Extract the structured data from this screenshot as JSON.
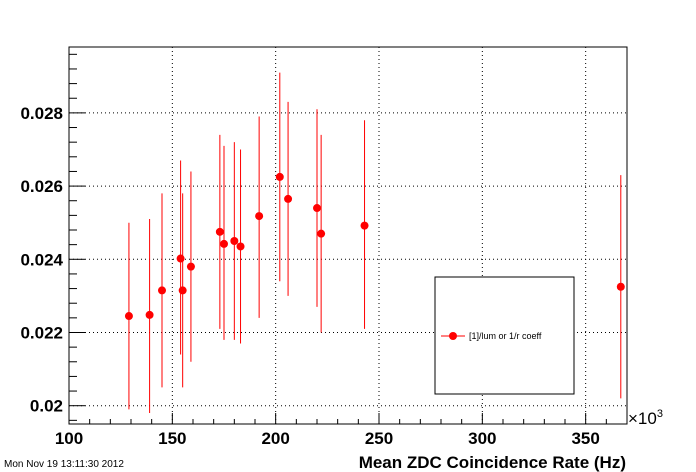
{
  "timestamp": "Mon Nov 19 13:11:30 2012",
  "chart_data": {
    "type": "scatter",
    "xlabel": "Mean ZDC Coincidence Rate (Hz)",
    "x_multiplier": "×10",
    "x_multiplier_exp": "3",
    "ylabel": "",
    "xlim": [
      100,
      370
    ],
    "ylim": [
      0.0195,
      0.0298
    ],
    "xticks": [
      100,
      150,
      200,
      250,
      300,
      350
    ],
    "xtick_labels": [
      "100",
      "150",
      "200",
      "250",
      "300",
      "350"
    ],
    "yticks": [
      0.02,
      0.022,
      0.024,
      0.026,
      0.028
    ],
    "ytick_labels": [
      "0.02",
      "0.022",
      "0.024",
      "0.026",
      "0.028"
    ],
    "grid": true,
    "legend_position": "lower-right",
    "marker_color": "#ff0000",
    "series": [
      {
        "name": "[1]/lum or 1/r coeff",
        "points": [
          {
            "x": 129,
            "y": 0.02245,
            "ylo": 0.0199,
            "yhi": 0.025
          },
          {
            "x": 139,
            "y": 0.02248,
            "ylo": 0.0198,
            "yhi": 0.0251
          },
          {
            "x": 145,
            "y": 0.02315,
            "ylo": 0.0205,
            "yhi": 0.0258
          },
          {
            "x": 154,
            "y": 0.02402,
            "ylo": 0.0214,
            "yhi": 0.0267
          },
          {
            "x": 155,
            "y": 0.02315,
            "ylo": 0.0205,
            "yhi": 0.0258
          },
          {
            "x": 159,
            "y": 0.0238,
            "ylo": 0.0212,
            "yhi": 0.0264
          },
          {
            "x": 173,
            "y": 0.02475,
            "ylo": 0.0221,
            "yhi": 0.0274
          },
          {
            "x": 175,
            "y": 0.02442,
            "ylo": 0.0218,
            "yhi": 0.0271
          },
          {
            "x": 180,
            "y": 0.0245,
            "ylo": 0.0218,
            "yhi": 0.0272
          },
          {
            "x": 183,
            "y": 0.02435,
            "ylo": 0.0217,
            "yhi": 0.027
          },
          {
            "x": 192,
            "y": 0.02518,
            "ylo": 0.0224,
            "yhi": 0.0279
          },
          {
            "x": 202,
            "y": 0.02625,
            "ylo": 0.0234,
            "yhi": 0.0291
          },
          {
            "x": 206,
            "y": 0.02565,
            "ylo": 0.023,
            "yhi": 0.0283
          },
          {
            "x": 220,
            "y": 0.0254,
            "ylo": 0.0227,
            "yhi": 0.0281
          },
          {
            "x": 222,
            "y": 0.0247,
            "ylo": 0.022,
            "yhi": 0.0274
          },
          {
            "x": 243,
            "y": 0.02492,
            "ylo": 0.0221,
            "yhi": 0.0278
          },
          {
            "x": 367,
            "y": 0.02325,
            "ylo": 0.0202,
            "yhi": 0.0263
          }
        ]
      }
    ]
  }
}
